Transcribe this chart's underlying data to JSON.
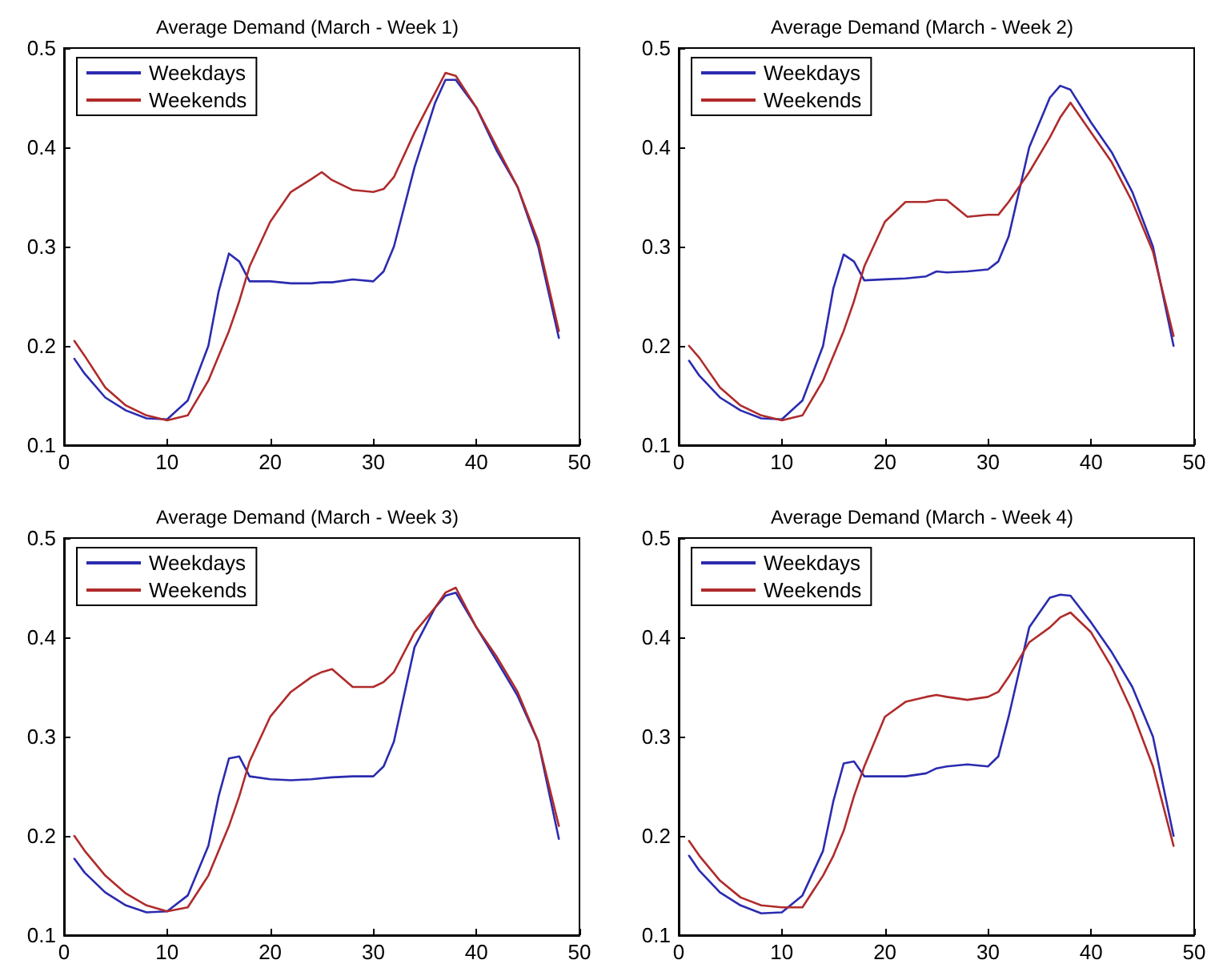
{
  "chart_data": [
    {
      "type": "line",
      "title": "Average Demand (March - Week 1)",
      "x": [
        1,
        2,
        4,
        6,
        8,
        10,
        12,
        14,
        15,
        16,
        17,
        18,
        20,
        22,
        24,
        25,
        26,
        28,
        30,
        31,
        32,
        34,
        36,
        37,
        38,
        40,
        42,
        44,
        46,
        48
      ],
      "xlim": [
        0,
        50
      ],
      "xticks": [
        0,
        10,
        20,
        30,
        40,
        50
      ],
      "ylim": [
        0.1,
        0.5
      ],
      "yticks": [
        0.1,
        0.2,
        0.3,
        0.4,
        0.5
      ],
      "legend": "top left",
      "grid": false,
      "series": [
        {
          "name": "Weekdays",
          "color": "#2b2bb0",
          "values": [
            0.187,
            0.172,
            0.148,
            0.135,
            0.127,
            0.126,
            0.145,
            0.2,
            0.255,
            0.293,
            0.285,
            0.265,
            0.265,
            0.263,
            0.263,
            0.264,
            0.264,
            0.267,
            0.265,
            0.275,
            0.3,
            0.38,
            0.445,
            0.468,
            0.468,
            0.44,
            0.396,
            0.36,
            0.3,
            0.208
          ]
        },
        {
          "name": "Weekends",
          "color": "#b02b2b",
          "values": [
            0.205,
            0.19,
            0.158,
            0.14,
            0.13,
            0.125,
            0.13,
            0.165,
            0.19,
            0.215,
            0.245,
            0.28,
            0.325,
            0.355,
            0.368,
            0.375,
            0.367,
            0.357,
            0.355,
            0.358,
            0.37,
            0.415,
            0.455,
            0.475,
            0.472,
            0.44,
            0.4,
            0.36,
            0.305,
            0.215
          ]
        }
      ]
    },
    {
      "type": "line",
      "title": "Average Demand (March - Week 2)",
      "x": [
        1,
        2,
        4,
        6,
        8,
        10,
        12,
        14,
        15,
        16,
        17,
        18,
        20,
        22,
        24,
        25,
        26,
        28,
        30,
        31,
        32,
        34,
        36,
        37,
        38,
        40,
        42,
        44,
        46,
        48
      ],
      "xlim": [
        0,
        50
      ],
      "xticks": [
        0,
        10,
        20,
        30,
        40,
        50
      ],
      "ylim": [
        0.1,
        0.5
      ],
      "yticks": [
        0.1,
        0.2,
        0.3,
        0.4,
        0.5
      ],
      "legend": "top left",
      "grid": false,
      "series": [
        {
          "name": "Weekdays",
          "color": "#2b2bb0",
          "values": [
            0.185,
            0.17,
            0.148,
            0.135,
            0.127,
            0.126,
            0.145,
            0.2,
            0.258,
            0.292,
            0.285,
            0.266,
            0.267,
            0.268,
            0.27,
            0.275,
            0.274,
            0.275,
            0.277,
            0.285,
            0.31,
            0.4,
            0.45,
            0.462,
            0.458,
            0.425,
            0.395,
            0.355,
            0.3,
            0.2
          ]
        },
        {
          "name": "Weekends",
          "color": "#b02b2b",
          "values": [
            0.2,
            0.188,
            0.158,
            0.14,
            0.13,
            0.125,
            0.13,
            0.165,
            0.19,
            0.215,
            0.245,
            0.28,
            0.325,
            0.345,
            0.345,
            0.347,
            0.347,
            0.33,
            0.332,
            0.332,
            0.345,
            0.375,
            0.41,
            0.43,
            0.445,
            0.415,
            0.385,
            0.345,
            0.295,
            0.21
          ]
        }
      ]
    },
    {
      "type": "line",
      "title": "Average Demand (March - Week 3)",
      "x": [
        1,
        2,
        4,
        6,
        8,
        10,
        12,
        14,
        15,
        16,
        17,
        18,
        20,
        22,
        24,
        25,
        26,
        28,
        30,
        31,
        32,
        34,
        36,
        37,
        38,
        40,
        42,
        44,
        46,
        48
      ],
      "xlim": [
        0,
        50
      ],
      "xticks": [
        0,
        10,
        20,
        30,
        40,
        50
      ],
      "ylim": [
        0.1,
        0.5
      ],
      "yticks": [
        0.1,
        0.2,
        0.3,
        0.4,
        0.5
      ],
      "legend": "top left",
      "grid": false,
      "series": [
        {
          "name": "Weekdays",
          "color": "#2b2bb0",
          "values": [
            0.177,
            0.163,
            0.143,
            0.13,
            0.123,
            0.124,
            0.14,
            0.19,
            0.24,
            0.278,
            0.28,
            0.26,
            0.257,
            0.256,
            0.257,
            0.258,
            0.259,
            0.26,
            0.26,
            0.27,
            0.295,
            0.39,
            0.43,
            0.442,
            0.445,
            0.41,
            0.376,
            0.341,
            0.295,
            0.197
          ]
        },
        {
          "name": "Weekends",
          "color": "#b02b2b",
          "values": [
            0.2,
            0.185,
            0.16,
            0.142,
            0.13,
            0.124,
            0.128,
            0.16,
            0.185,
            0.21,
            0.24,
            0.275,
            0.32,
            0.345,
            0.36,
            0.365,
            0.368,
            0.35,
            0.35,
            0.355,
            0.365,
            0.405,
            0.43,
            0.445,
            0.45,
            0.41,
            0.38,
            0.345,
            0.295,
            0.21
          ]
        }
      ]
    },
    {
      "type": "line",
      "title": "Average Demand (March - Week 4)",
      "x": [
        1,
        2,
        4,
        6,
        8,
        10,
        12,
        14,
        15,
        16,
        17,
        18,
        20,
        22,
        24,
        25,
        26,
        28,
        30,
        31,
        32,
        34,
        36,
        37,
        38,
        40,
        42,
        44,
        46,
        48
      ],
      "xlim": [
        0,
        50
      ],
      "xticks": [
        0,
        10,
        20,
        30,
        40,
        50
      ],
      "ylim": [
        0.1,
        0.5
      ],
      "yticks": [
        0.1,
        0.2,
        0.3,
        0.4,
        0.5
      ],
      "legend": "top left",
      "grid": false,
      "series": [
        {
          "name": "Weekdays",
          "color": "#2b2bb0",
          "values": [
            0.18,
            0.165,
            0.143,
            0.13,
            0.122,
            0.123,
            0.14,
            0.185,
            0.235,
            0.273,
            0.275,
            0.26,
            0.26,
            0.26,
            0.263,
            0.268,
            0.27,
            0.272,
            0.27,
            0.28,
            0.32,
            0.41,
            0.44,
            0.443,
            0.442,
            0.415,
            0.385,
            0.35,
            0.3,
            0.2
          ]
        },
        {
          "name": "Weekends",
          "color": "#b02b2b",
          "values": [
            0.195,
            0.18,
            0.155,
            0.138,
            0.13,
            0.128,
            0.128,
            0.16,
            0.18,
            0.205,
            0.24,
            0.27,
            0.32,
            0.335,
            0.34,
            0.342,
            0.34,
            0.337,
            0.34,
            0.345,
            0.36,
            0.395,
            0.41,
            0.42,
            0.425,
            0.405,
            0.37,
            0.325,
            0.27,
            0.19
          ]
        }
      ]
    }
  ]
}
